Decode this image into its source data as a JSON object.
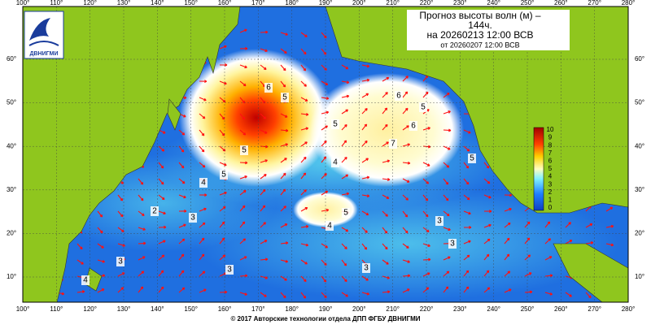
{
  "header": {
    "title_line1": "Прогноз высоты волн (м) –",
    "title_line2": "144ч.",
    "forecast_for": "на 20260213 12:00 ВСВ",
    "issued": "от 20260207 12:00 ВСВ"
  },
  "logo": {
    "text": "ДВНИГМИ"
  },
  "footer": {
    "copyright": "© 2017 Авторские технологии отдела ДПП ФГБУ ДВНИГМИ"
  },
  "map": {
    "longitude_labels": [
      "100°",
      "110°",
      "120°",
      "130°",
      "140°",
      "150°",
      "160°",
      "170°",
      "180°",
      "190°",
      "200°",
      "210°",
      "220°",
      "230°",
      "240°",
      "250°",
      "260°",
      "270°",
      "280°"
    ],
    "latitude_labels": [
      "10°",
      "20°",
      "30°",
      "40°",
      "50°",
      "60°"
    ],
    "colorbar_labels": [
      "10",
      "9",
      "8",
      "7",
      "6",
      "5",
      "4",
      "3",
      "2",
      "1",
      "0"
    ],
    "contour_labels": [
      "6",
      "5",
      "6",
      "5",
      "6",
      "7",
      "5",
      "4",
      "5",
      "5",
      "4",
      "5",
      "4",
      "3",
      "3",
      "3",
      "3",
      "2",
      "3",
      "3",
      "4",
      "5"
    ]
  }
}
